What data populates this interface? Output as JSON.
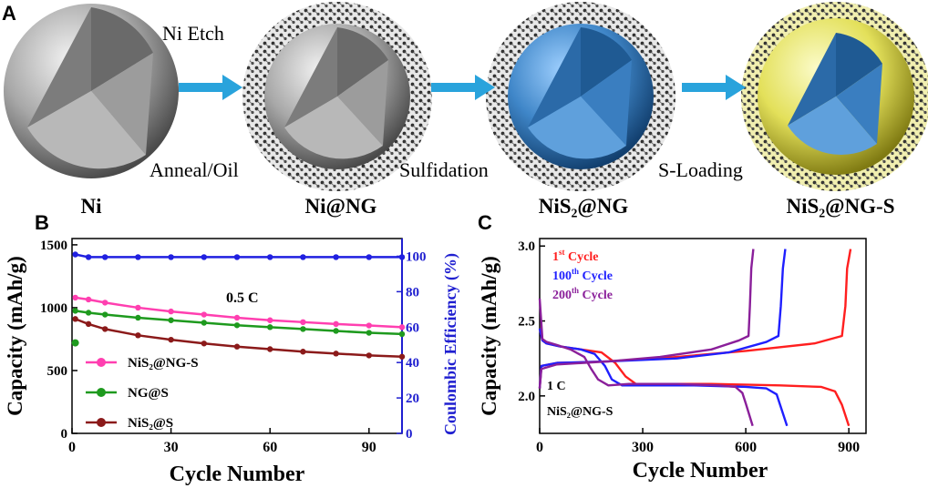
{
  "panel_labels": {
    "a": "A",
    "b": "B",
    "c": "C"
  },
  "schematic": {
    "stages": [
      "Ni",
      "Ni@NG",
      "NiS₂@NG",
      "NiS₂@NG-S"
    ],
    "steps_above": [
      "Ni Etch",
      "",
      ""
    ],
    "steps_below": [
      "Anneal/Oil",
      "Sulfidation",
      "S-Loading"
    ],
    "colors": {
      "ni": "#9a9a9a",
      "nis2": "#3f86c8",
      "sulfur": "#e3e05a",
      "arrow": "#29a3dc",
      "carbon": "#3a3a3a"
    }
  },
  "chart_data": [
    {
      "panel": "B",
      "type": "scatter",
      "xlabel": "Cycle Number",
      "ylabel": "Capacity (mAh/g)",
      "y2label": "Coulombic Efficiency (%)",
      "annotation": "0.5 C",
      "xlim": [
        0,
        100
      ],
      "ylim": [
        0,
        1550
      ],
      "y2lim": [
        0,
        110
      ],
      "xticks": [
        0,
        30,
        60,
        90
      ],
      "yticks": [
        0,
        500,
        1000,
        1500
      ],
      "y2ticks": [
        0,
        20,
        40,
        60,
        80,
        100
      ],
      "legend_position": "lower-left",
      "series": [
        {
          "name": "NiS₂@NG-S",
          "color": "#ff3fb0",
          "axis": "left",
          "x": [
            1,
            5,
            10,
            20,
            30,
            40,
            50,
            60,
            70,
            80,
            90,
            100
          ],
          "values": [
            1080,
            1065,
            1040,
            1000,
            970,
            945,
            920,
            900,
            885,
            870,
            858,
            845
          ]
        },
        {
          "name": "NG@S",
          "color": "#1e9a1e",
          "axis": "left",
          "x": [
            1,
            5,
            10,
            20,
            30,
            40,
            50,
            60,
            70,
            80,
            90,
            100
          ],
          "values": [
            975,
            960,
            945,
            920,
            900,
            880,
            860,
            845,
            830,
            815,
            800,
            790
          ]
        },
        {
          "name": "NiS₂@S",
          "color": "#8b1a1a",
          "axis": "left",
          "x": [
            1,
            5,
            10,
            20,
            30,
            40,
            50,
            60,
            70,
            80,
            90,
            100
          ],
          "values": [
            910,
            870,
            830,
            780,
            745,
            715,
            690,
            670,
            650,
            635,
            620,
            610
          ]
        },
        {
          "name": "",
          "color": "#2020e0",
          "axis": "right",
          "x": [
            1,
            5,
            10,
            20,
            30,
            40,
            50,
            60,
            70,
            80,
            90,
            100
          ],
          "values": [
            101,
            99.5,
            99.5,
            99.5,
            99.5,
            99.5,
            99.5,
            99.5,
            99.5,
            99.5,
            99.5,
            99.5
          ]
        }
      ],
      "initial_points": [
        {
          "x": 1,
          "values": [
            720
          ],
          "color": "#1e9a1e"
        }
      ]
    },
    {
      "panel": "C",
      "type": "line",
      "xlabel": "Cycle Number",
      "ylabel": "Capacity (mAh/g)",
      "annotations": [
        "1 C",
        "NiS₂@NG-S"
      ],
      "xlim": [
        0,
        950
      ],
      "ylim": [
        1.75,
        3.05
      ],
      "xticks": [
        0,
        300,
        600,
        900
      ],
      "yticks": [
        2.0,
        2.5,
        3.0
      ],
      "legend_position": "top-left",
      "legend": [
        {
          "base": "1",
          "sup": "st",
          "rest": " Cycle",
          "color": "#ff1f1f"
        },
        {
          "base": "100",
          "sup": "th",
          "rest": " Cycle",
          "color": "#1f1fff"
        },
        {
          "base": "200",
          "sup": "th",
          "rest": " Cycle",
          "color": "#8a1f9a"
        }
      ],
      "series": [
        {
          "name": "1st Cycle",
          "color": "#ff1f1f",
          "discharge": {
            "x": [
              0,
              8,
              20,
              60,
              120,
              180,
              220,
              250,
              280,
              350,
              500,
              700,
              820,
              860,
              880,
              900
            ],
            "y": [
              2.45,
              2.37,
              2.35,
              2.33,
              2.31,
              2.29,
              2.22,
              2.13,
              2.08,
              2.08,
              2.08,
              2.07,
              2.06,
              2.03,
              1.94,
              1.8
            ]
          },
          "charge": {
            "x": [
              0,
              5,
              50,
              200,
              400,
              600,
              800,
              880,
              890,
              895,
              905
            ],
            "y": [
              2.05,
              2.2,
              2.22,
              2.23,
              2.26,
              2.3,
              2.35,
              2.4,
              2.6,
              2.85,
              2.98
            ]
          }
        },
        {
          "name": "100th Cycle",
          "color": "#1f1fff",
          "discharge": {
            "x": [
              0,
              8,
              20,
              60,
              120,
              160,
              190,
              210,
              240,
              300,
              450,
              600,
              660,
              690,
              700,
              720
            ],
            "y": [
              2.45,
              2.37,
              2.35,
              2.33,
              2.31,
              2.28,
              2.2,
              2.11,
              2.07,
              2.07,
              2.07,
              2.06,
              2.05,
              2.01,
              1.94,
              1.8
            ]
          },
          "charge": {
            "x": [
              0,
              5,
              50,
              200,
              400,
              550,
              660,
              695,
              702,
              708,
              715
            ],
            "y": [
              2.05,
              2.2,
              2.22,
              2.23,
              2.25,
              2.29,
              2.36,
              2.4,
              2.6,
              2.85,
              2.98
            ]
          }
        },
        {
          "name": "200th Cycle",
          "color": "#8a1f9a",
          "discharge": {
            "x": [
              0,
              8,
              20,
              50,
              90,
              130,
              150,
              170,
              200,
              260,
              400,
              520,
              570,
              590,
              600,
              620
            ],
            "y": [
              2.65,
              2.38,
              2.36,
              2.34,
              2.31,
              2.26,
              2.18,
              2.11,
              2.07,
              2.08,
              2.08,
              2.07,
              2.06,
              2.02,
              1.95,
              1.8
            ]
          },
          "charge": {
            "x": [
              0,
              5,
              50,
              200,
              350,
              500,
              580,
              608,
              612,
              616,
              622
            ],
            "y": [
              2.05,
              2.18,
              2.21,
              2.23,
              2.26,
              2.31,
              2.37,
              2.4,
              2.6,
              2.85,
              2.98
            ]
          }
        }
      ]
    }
  ]
}
